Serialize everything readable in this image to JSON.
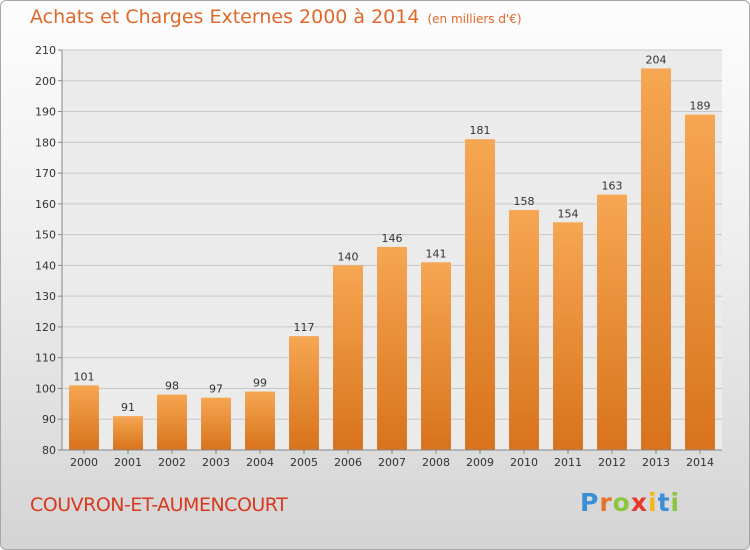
{
  "header": {
    "title": "Achats et Charges Externes 2000 à 2014",
    "unit": "(en milliers d'€)"
  },
  "footer": {
    "place": "COUVRON-ET-AUMENCOURT",
    "logo_letters": [
      "P",
      "r",
      "o",
      "x",
      "i",
      "t",
      "i"
    ],
    "logo_colors": [
      "#3a8fd6",
      "#e8722a",
      "#8cc63f",
      "#e83a2a",
      "#f2b61a",
      "#3a8fd6",
      "#8cc63f"
    ]
  },
  "chart_data": {
    "type": "bar",
    "categories": [
      "2000",
      "2001",
      "2002",
      "2003",
      "2004",
      "2005",
      "2006",
      "2007",
      "2008",
      "2009",
      "2010",
      "2011",
      "2012",
      "2013",
      "2014"
    ],
    "values": [
      101,
      91,
      98,
      97,
      99,
      117,
      140,
      146,
      141,
      181,
      158,
      154,
      163,
      204,
      189
    ],
    "data_labels": [
      "101",
      "91",
      "98",
      "97",
      "99",
      "117",
      "140",
      "146",
      "141",
      "181",
      "158",
      "154",
      "163",
      "204",
      "189"
    ],
    "ylim": [
      80,
      210
    ],
    "yticks": [
      80,
      90,
      100,
      110,
      120,
      130,
      140,
      150,
      160,
      170,
      180,
      190,
      200,
      210
    ],
    "grid": true,
    "bar_color": "#f0902e"
  }
}
